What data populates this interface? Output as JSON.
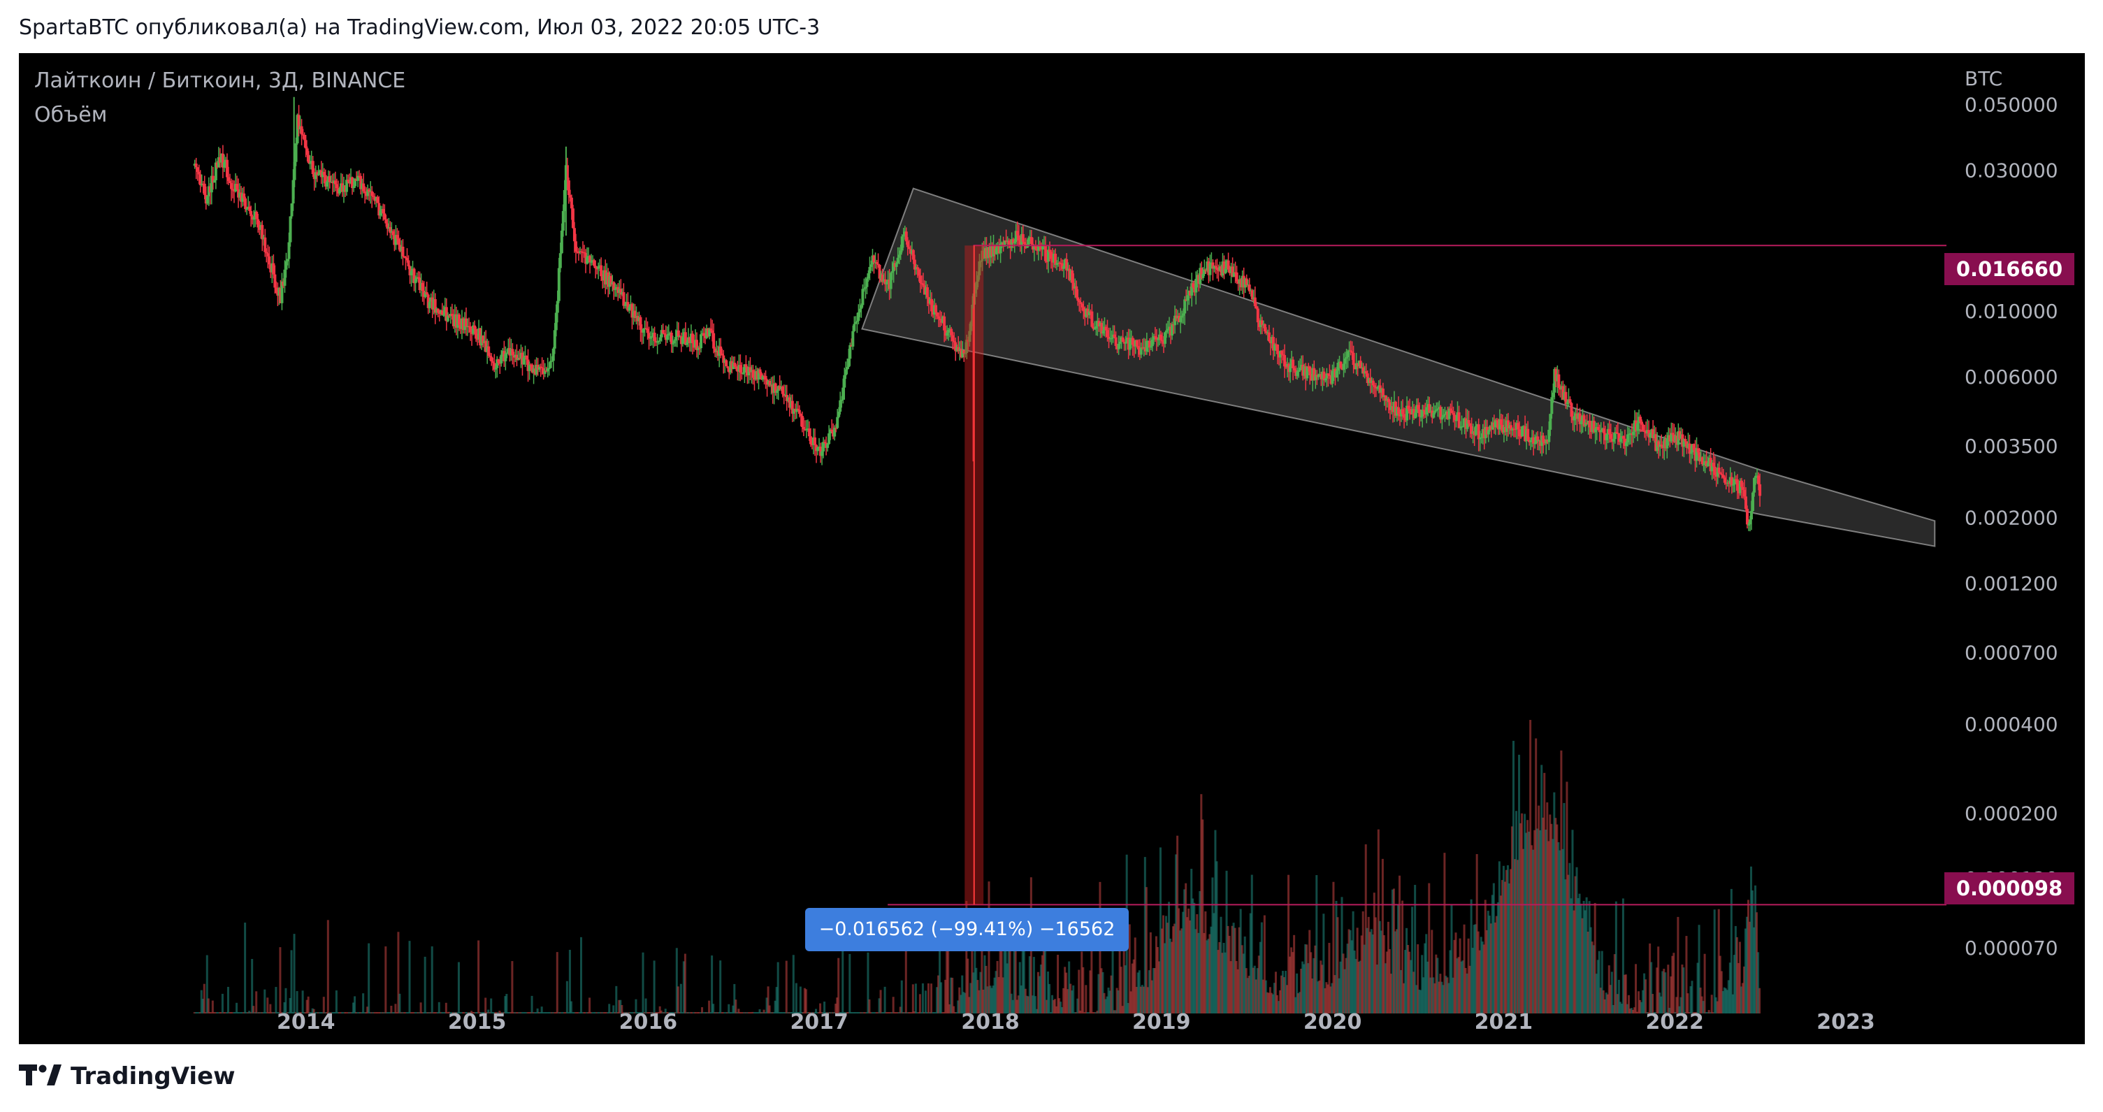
{
  "header": {
    "publish_line": "SpartaBTC опубликовал(а) на TradingView.com, Июл 03, 2022 20:05 UTC-3"
  },
  "legend": {
    "symbol_title": "Лайткоин / Биткоин, 3Д, BINANCE",
    "volume_label": "Объём"
  },
  "footer": {
    "logo_text": "TradingView"
  },
  "colors": {
    "background": "#000000",
    "up": "#26a69a",
    "down": "#ef5350",
    "up_candle": "#4caf50",
    "down_candle": "#f23645",
    "tag": "#880e4f",
    "measure": "#3d7ede",
    "axis_text": "#b2b5be"
  },
  "chart_data": {
    "type": "candlestick",
    "symbol": "LTC/BTC",
    "exchange": "BINANCE",
    "interval": "3D",
    "currency": "BTC",
    "y_scale": "log",
    "ylim": [
      4.2e-05,
      0.068
    ],
    "xlim": [
      2013.32,
      2023.6
    ],
    "x_ticks": [
      "2014",
      "2015",
      "2016",
      "2017",
      "2018",
      "2019",
      "2020",
      "2021",
      "2022",
      "2023"
    ],
    "y_ticks": [
      "0.050000",
      "0.030000",
      "0.016660",
      "0.010000",
      "0.006000",
      "0.003500",
      "0.002000",
      "0.001200",
      "0.000700",
      "0.000400",
      "0.000200",
      "0.000120",
      "0.000098",
      "0.000070"
    ],
    "y_tick_values": [
      0.05,
      0.03,
      0.01,
      0.006,
      0.0035,
      0.002,
      0.0012,
      0.0007,
      0.0004,
      0.0002,
      0.00012,
      7e-05
    ],
    "price_path": [
      [
        2013.35,
        0.031
      ],
      [
        2013.42,
        0.024
      ],
      [
        2013.5,
        0.034
      ],
      [
        2013.58,
        0.026
      ],
      [
        2013.72,
        0.02
      ],
      [
        2013.85,
        0.011
      ],
      [
        2013.9,
        0.017
      ],
      [
        2013.95,
        0.045
      ],
      [
        2014.05,
        0.029
      ],
      [
        2014.2,
        0.026
      ],
      [
        2014.3,
        0.028
      ],
      [
        2014.4,
        0.024
      ],
      [
        2014.55,
        0.016
      ],
      [
        2014.7,
        0.011
      ],
      [
        2014.85,
        0.0095
      ],
      [
        2015.0,
        0.0085
      ],
      [
        2015.1,
        0.0065
      ],
      [
        2015.2,
        0.0075
      ],
      [
        2015.3,
        0.0065
      ],
      [
        2015.4,
        0.006
      ],
      [
        2015.45,
        0.0075
      ],
      [
        2015.52,
        0.03
      ],
      [
        2015.58,
        0.016
      ],
      [
        2015.75,
        0.013
      ],
      [
        2015.9,
        0.01
      ],
      [
        2016.0,
        0.0083
      ],
      [
        2016.15,
        0.0082
      ],
      [
        2016.3,
        0.0078
      ],
      [
        2016.35,
        0.0087
      ],
      [
        2016.45,
        0.0065
      ],
      [
        2016.6,
        0.0063
      ],
      [
        2016.75,
        0.0055
      ],
      [
        2016.9,
        0.0042
      ],
      [
        2017.0,
        0.0033
      ],
      [
        2017.1,
        0.0041
      ],
      [
        2017.2,
        0.0085
      ],
      [
        2017.3,
        0.015
      ],
      [
        2017.4,
        0.012
      ],
      [
        2017.5,
        0.018
      ],
      [
        2017.6,
        0.012
      ],
      [
        2017.75,
        0.0085
      ],
      [
        2017.85,
        0.007
      ],
      [
        2017.95,
        0.016
      ],
      [
        2018.05,
        0.016
      ],
      [
        2018.15,
        0.018
      ],
      [
        2018.3,
        0.016
      ],
      [
        2018.45,
        0.014
      ],
      [
        2018.55,
        0.01
      ],
      [
        2018.7,
        0.008
      ],
      [
        2018.9,
        0.0075
      ],
      [
        2019.05,
        0.0085
      ],
      [
        2019.15,
        0.011
      ],
      [
        2019.25,
        0.014
      ],
      [
        2019.4,
        0.014
      ],
      [
        2019.5,
        0.012
      ],
      [
        2019.6,
        0.0085
      ],
      [
        2019.75,
        0.0065
      ],
      [
        2019.9,
        0.006
      ],
      [
        2020.0,
        0.006
      ],
      [
        2020.1,
        0.0071
      ],
      [
        2020.25,
        0.0055
      ],
      [
        2020.4,
        0.0045
      ],
      [
        2020.55,
        0.0047
      ],
      [
        2020.7,
        0.0044
      ],
      [
        2020.85,
        0.0039
      ],
      [
        2021.0,
        0.0041
      ],
      [
        2021.15,
        0.0038
      ],
      [
        2021.25,
        0.0035
      ],
      [
        2021.3,
        0.0062
      ],
      [
        2021.4,
        0.0045
      ],
      [
        2021.55,
        0.0039
      ],
      [
        2021.7,
        0.0036
      ],
      [
        2021.8,
        0.0043
      ],
      [
        2021.9,
        0.0035
      ],
      [
        2022.0,
        0.0038
      ],
      [
        2022.15,
        0.0032
      ],
      [
        2022.3,
        0.0027
      ],
      [
        2022.4,
        0.0025
      ],
      [
        2022.43,
        0.0019
      ],
      [
        2022.47,
        0.0027
      ],
      [
        2022.5,
        0.0025
      ]
    ],
    "volume_path": [
      [
        2013.35,
        4.3e-05
      ],
      [
        2017.3,
        4.3e-05
      ],
      [
        2017.5,
        5.2e-05
      ],
      [
        2017.7,
        5.8e-05
      ],
      [
        2017.85,
        6.2e-05
      ],
      [
        2017.9,
        7.8e-05
      ],
      [
        2018.0,
        7.6e-05
      ],
      [
        2018.2,
        6.8e-05
      ],
      [
        2018.6,
        6e-05
      ],
      [
        2018.9,
        7.5e-05
      ],
      [
        2019.15,
        0.00013
      ],
      [
        2019.3,
        0.00011
      ],
      [
        2019.5,
        8.5e-05
      ],
      [
        2019.7,
        7e-05
      ],
      [
        2020.0,
        8e-05
      ],
      [
        2020.2,
        0.0001
      ],
      [
        2020.5,
        7.5e-05
      ],
      [
        2020.8,
        8.5e-05
      ],
      [
        2021.0,
        0.00015
      ],
      [
        2021.1,
        0.00022
      ],
      [
        2021.3,
        0.00025
      ],
      [
        2021.45,
        0.00012
      ],
      [
        2021.6,
        7e-05
      ],
      [
        2021.8,
        6.5e-05
      ],
      [
        2022.0,
        6e-05
      ],
      [
        2022.2,
        5.6e-05
      ],
      [
        2022.4,
        8e-05
      ],
      [
        2022.45,
        0.00014
      ],
      [
        2022.5,
        7.5e-05
      ]
    ],
    "annotations": {
      "horizontal_lines": [
        0.01666,
        9.8e-05
      ],
      "price_tags": [
        "0.016660",
        "0.000098"
      ],
      "wedge": {
        "upper": [
          [
            2017.55,
            0.026
          ],
          [
            2022.5,
            0.0029
          ],
          [
            2023.52,
            0.00195
          ]
        ],
        "lower": [
          [
            2017.25,
            0.0087
          ],
          [
            2022.5,
            0.00205
          ],
          [
            2023.52,
            0.0016
          ]
        ]
      },
      "measure_range": {
        "x": [
          2017.85,
          2017.96
        ],
        "y": [
          9.8e-05,
          0.01666
        ],
        "label": "−0.016562 (−99.41%) −16562"
      }
    }
  }
}
